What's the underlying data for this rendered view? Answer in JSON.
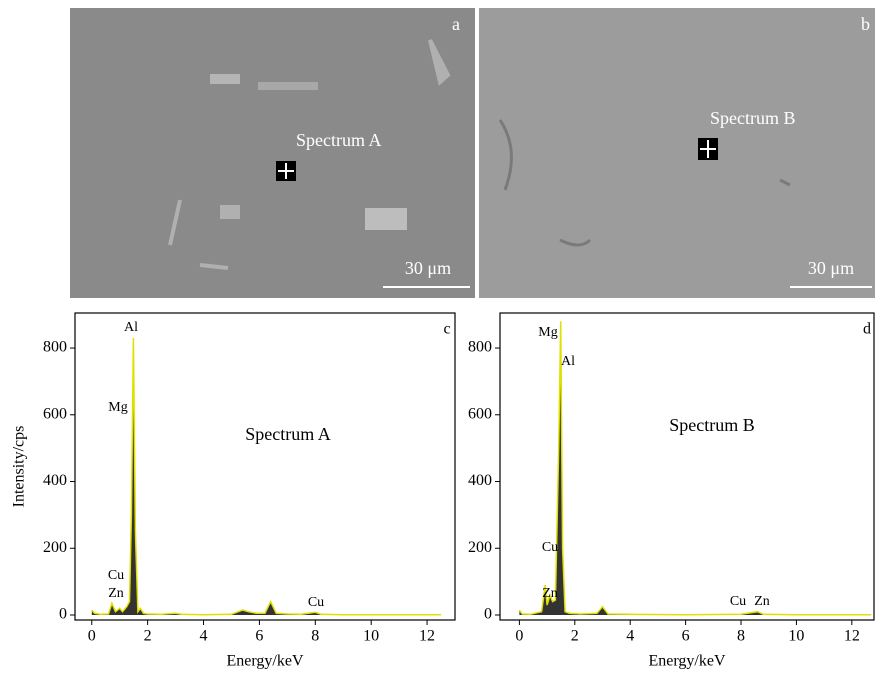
{
  "images": [
    {
      "panel": "a",
      "marker_label": "Spectrum A",
      "scale_bar": "30 μm"
    },
    {
      "panel": "b",
      "marker_label": "Spectrum B",
      "scale_bar": "30 μm"
    }
  ],
  "chart_data": [
    {
      "type": "area",
      "panel": "c",
      "label": "Spectrum A",
      "x_label": "Energy/keV",
      "y_label": "Intensity/cps",
      "xlim": [
        -0.6,
        13.0
      ],
      "xticks": [
        0,
        2,
        4,
        6,
        8,
        10,
        12
      ],
      "ylim": [
        -15,
        905
      ],
      "yticks": [
        0,
        200,
        400,
        600,
        800
      ],
      "annotations": [
        "Al",
        "Mg",
        "Cu",
        "Zn",
        "Cu"
      ],
      "series": [
        {
          "color": "#333333",
          "edge_color": "#e0e000",
          "x": [
            0,
            0.1,
            0.3,
            0.6,
            0.72,
            0.85,
            1.0,
            1.1,
            1.25,
            1.35,
            1.42,
            1.49,
            1.56,
            1.65,
            1.74,
            1.85,
            2.0,
            2.5,
            3.0,
            3.2,
            4.0,
            5.0,
            5.4,
            5.6,
            5.9,
            6.2,
            6.4,
            6.6,
            7.0,
            7.5,
            8.0,
            8.2,
            9,
            10,
            11,
            12,
            12.5
          ],
          "values": [
            15,
            5,
            2,
            3,
            35,
            10,
            20,
            10,
            25,
            40,
            300,
            830,
            250,
            10,
            20,
            5,
            3,
            2,
            5,
            2,
            1,
            2,
            15,
            10,
            5,
            5,
            40,
            5,
            3,
            2,
            8,
            2,
            1,
            1,
            1,
            1,
            1
          ]
        }
      ]
    },
    {
      "type": "area",
      "panel": "d",
      "label": "Spectrum B",
      "x_label": "Energy/keV",
      "xlim": [
        -0.7,
        12.8
      ],
      "xticks": [
        0,
        2,
        4,
        6,
        8,
        10,
        12
      ],
      "ylim": [
        -15,
        905
      ],
      "yticks": [
        0,
        200,
        400,
        600,
        800
      ],
      "annotations": [
        "Mg",
        "Al",
        "Cu",
        "Zn",
        "Cu",
        "Zn"
      ],
      "series": [
        {
          "color": "#333333",
          "edge_color": "#e0e000",
          "x": [
            0,
            0.1,
            0.4,
            0.8,
            0.93,
            1.0,
            1.1,
            1.2,
            1.3,
            1.42,
            1.49,
            1.56,
            1.65,
            1.8,
            2.2,
            2.8,
            3.0,
            3.2,
            4,
            6,
            8,
            8.6,
            8.8,
            10,
            12,
            12.7
          ],
          "values": [
            15,
            3,
            2,
            10,
            90,
            30,
            60,
            40,
            45,
            500,
            880,
            200,
            10,
            5,
            3,
            5,
            25,
            3,
            2,
            1,
            2,
            10,
            2,
            1,
            1,
            1
          ]
        }
      ]
    }
  ]
}
